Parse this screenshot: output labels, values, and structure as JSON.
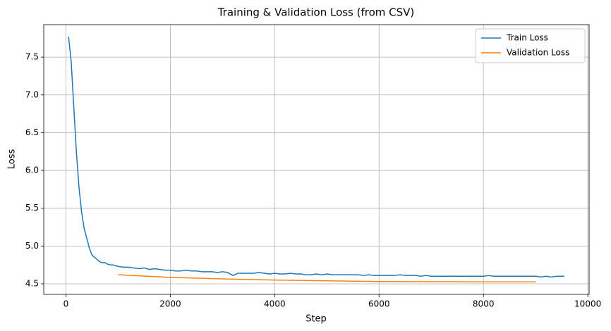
{
  "chart_data": {
    "type": "line",
    "title": "Training & Validation Loss (from CSV)",
    "x_label": "Step",
    "y_label": "Loss",
    "xlim": [
      -425,
      10025
    ],
    "ylim": [
      4.36,
      7.93
    ],
    "xticks": [
      0,
      2000,
      4000,
      6000,
      8000,
      10000
    ],
    "yticks": [
      4.5,
      {
        "value": 5,
        "label": "5.0"
      },
      5.5,
      {
        "value": 6,
        "label": "6.0"
      },
      6.5,
      {
        "value": 7,
        "label": "7.0"
      },
      7.5
    ],
    "grid": true,
    "legend": "upper-right",
    "series": [
      {
        "name": "Train Loss",
        "color": "#1f77b4",
        "x": [
          50,
          100,
          150,
          200,
          250,
          300,
          350,
          400,
          450,
          500,
          550,
          600,
          650,
          700,
          750,
          800,
          850,
          900,
          950,
          1000,
          1100,
          1200,
          1300,
          1400,
          1500,
          1600,
          1700,
          1800,
          1900,
          2000,
          2100,
          2200,
          2300,
          2400,
          2500,
          2600,
          2700,
          2800,
          2900,
          3000,
          3100,
          3200,
          3300,
          3400,
          3500,
          3600,
          3700,
          3800,
          3900,
          4000,
          4100,
          4200,
          4300,
          4400,
          4500,
          4600,
          4700,
          4800,
          4900,
          5000,
          5100,
          5200,
          5300,
          5400,
          5500,
          5600,
          5700,
          5800,
          5900,
          6000,
          6100,
          6200,
          6300,
          6400,
          6500,
          6600,
          6700,
          6800,
          6900,
          7000,
          7100,
          7200,
          7300,
          7400,
          7500,
          7600,
          7700,
          7800,
          7900,
          8000,
          8100,
          8200,
          8300,
          8400,
          8500,
          8600,
          8700,
          8800,
          8900,
          9000,
          9100,
          9200,
          9300,
          9400,
          9500,
          9550
        ],
        "values": [
          7.77,
          7.45,
          6.85,
          6.25,
          5.78,
          5.45,
          5.23,
          5.1,
          4.97,
          4.88,
          4.85,
          4.82,
          4.79,
          4.78,
          4.78,
          4.76,
          4.75,
          4.75,
          4.74,
          4.73,
          4.72,
          4.72,
          4.71,
          4.7,
          4.71,
          4.69,
          4.7,
          4.69,
          4.68,
          4.68,
          4.67,
          4.67,
          4.68,
          4.67,
          4.67,
          4.66,
          4.66,
          4.66,
          4.65,
          4.66,
          4.65,
          4.61,
          4.64,
          4.64,
          4.64,
          4.64,
          4.65,
          4.64,
          4.63,
          4.64,
          4.63,
          4.63,
          4.64,
          4.63,
          4.63,
          4.62,
          4.62,
          4.63,
          4.62,
          4.63,
          4.62,
          4.62,
          4.62,
          4.62,
          4.62,
          4.62,
          4.61,
          4.62,
          4.61,
          4.61,
          4.61,
          4.61,
          4.61,
          4.62,
          4.61,
          4.61,
          4.61,
          4.6,
          4.61,
          4.6,
          4.6,
          4.6,
          4.6,
          4.6,
          4.6,
          4.6,
          4.6,
          4.6,
          4.6,
          4.6,
          4.61,
          4.6,
          4.6,
          4.6,
          4.6,
          4.6,
          4.6,
          4.6,
          4.6,
          4.6,
          4.59,
          4.6,
          4.59,
          4.6,
          4.6,
          4.6
        ]
      },
      {
        "name": "Validation Loss",
        "color": "#ff7f0e",
        "x": [
          1000,
          2000,
          3000,
          4000,
          5000,
          6000,
          7000,
          8000,
          9000
        ],
        "values": [
          4.62,
          4.585,
          4.565,
          4.55,
          4.54,
          4.53,
          4.528,
          4.526,
          4.525
        ]
      }
    ]
  }
}
